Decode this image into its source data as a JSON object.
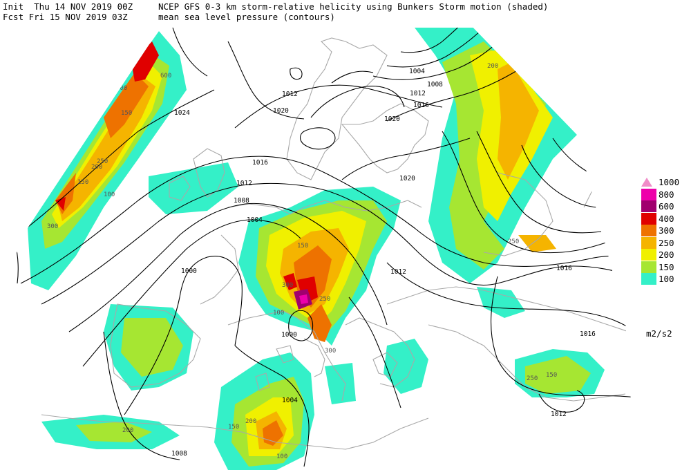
{
  "header": {
    "init_label": "Init  Thu 14 NOV 2019 00Z",
    "fcst_label": "Fcst Fri 15 NOV 2019 03Z",
    "title_line1": "NCEP GFS 0-3 km storm-relative helicity using Bunkers Storm motion (shaded)",
    "title_line2": "mean sea level pressure (contours)"
  },
  "legend": {
    "items": [
      {
        "label": "1000",
        "color": "#f08cc8",
        "marker": "triangle"
      },
      {
        "label": "800",
        "color": "#ee00aa"
      },
      {
        "label": "600",
        "color": "#a0006e"
      },
      {
        "label": "400",
        "color": "#e00000"
      },
      {
        "label": "300",
        "color": "#ee7200"
      },
      {
        "label": "250",
        "color": "#f5b400"
      },
      {
        "label": "200",
        "color": "#f0f000"
      },
      {
        "label": "150",
        "color": "#a6e632"
      },
      {
        "label": "100",
        "color": "#34f0c8"
      }
    ],
    "units": "m2/s2"
  },
  "colors": {
    "coastline": "#a8a8a8",
    "isobar": "#000000",
    "background": "#ffffff"
  },
  "isobar_labels": [
    "1024",
    "1016",
    "1016",
    "1012",
    "1012",
    "1008",
    "1004",
    "1020",
    "1020",
    "1020",
    "1016",
    "1012",
    "1008",
    "1004",
    "1016",
    "1012",
    "1008",
    "1004",
    "1000",
    "1000",
    "1012",
    "1016",
    "1020",
    "1012",
    "1004",
    "1008"
  ],
  "helicity_labels": [
    "300",
    "100",
    "150",
    "200",
    "250",
    "400",
    "600",
    "100",
    "150",
    "200",
    "250",
    "300",
    "150",
    "100",
    "250",
    "200",
    "150",
    "100",
    "300",
    "200",
    "250",
    "150"
  ]
}
